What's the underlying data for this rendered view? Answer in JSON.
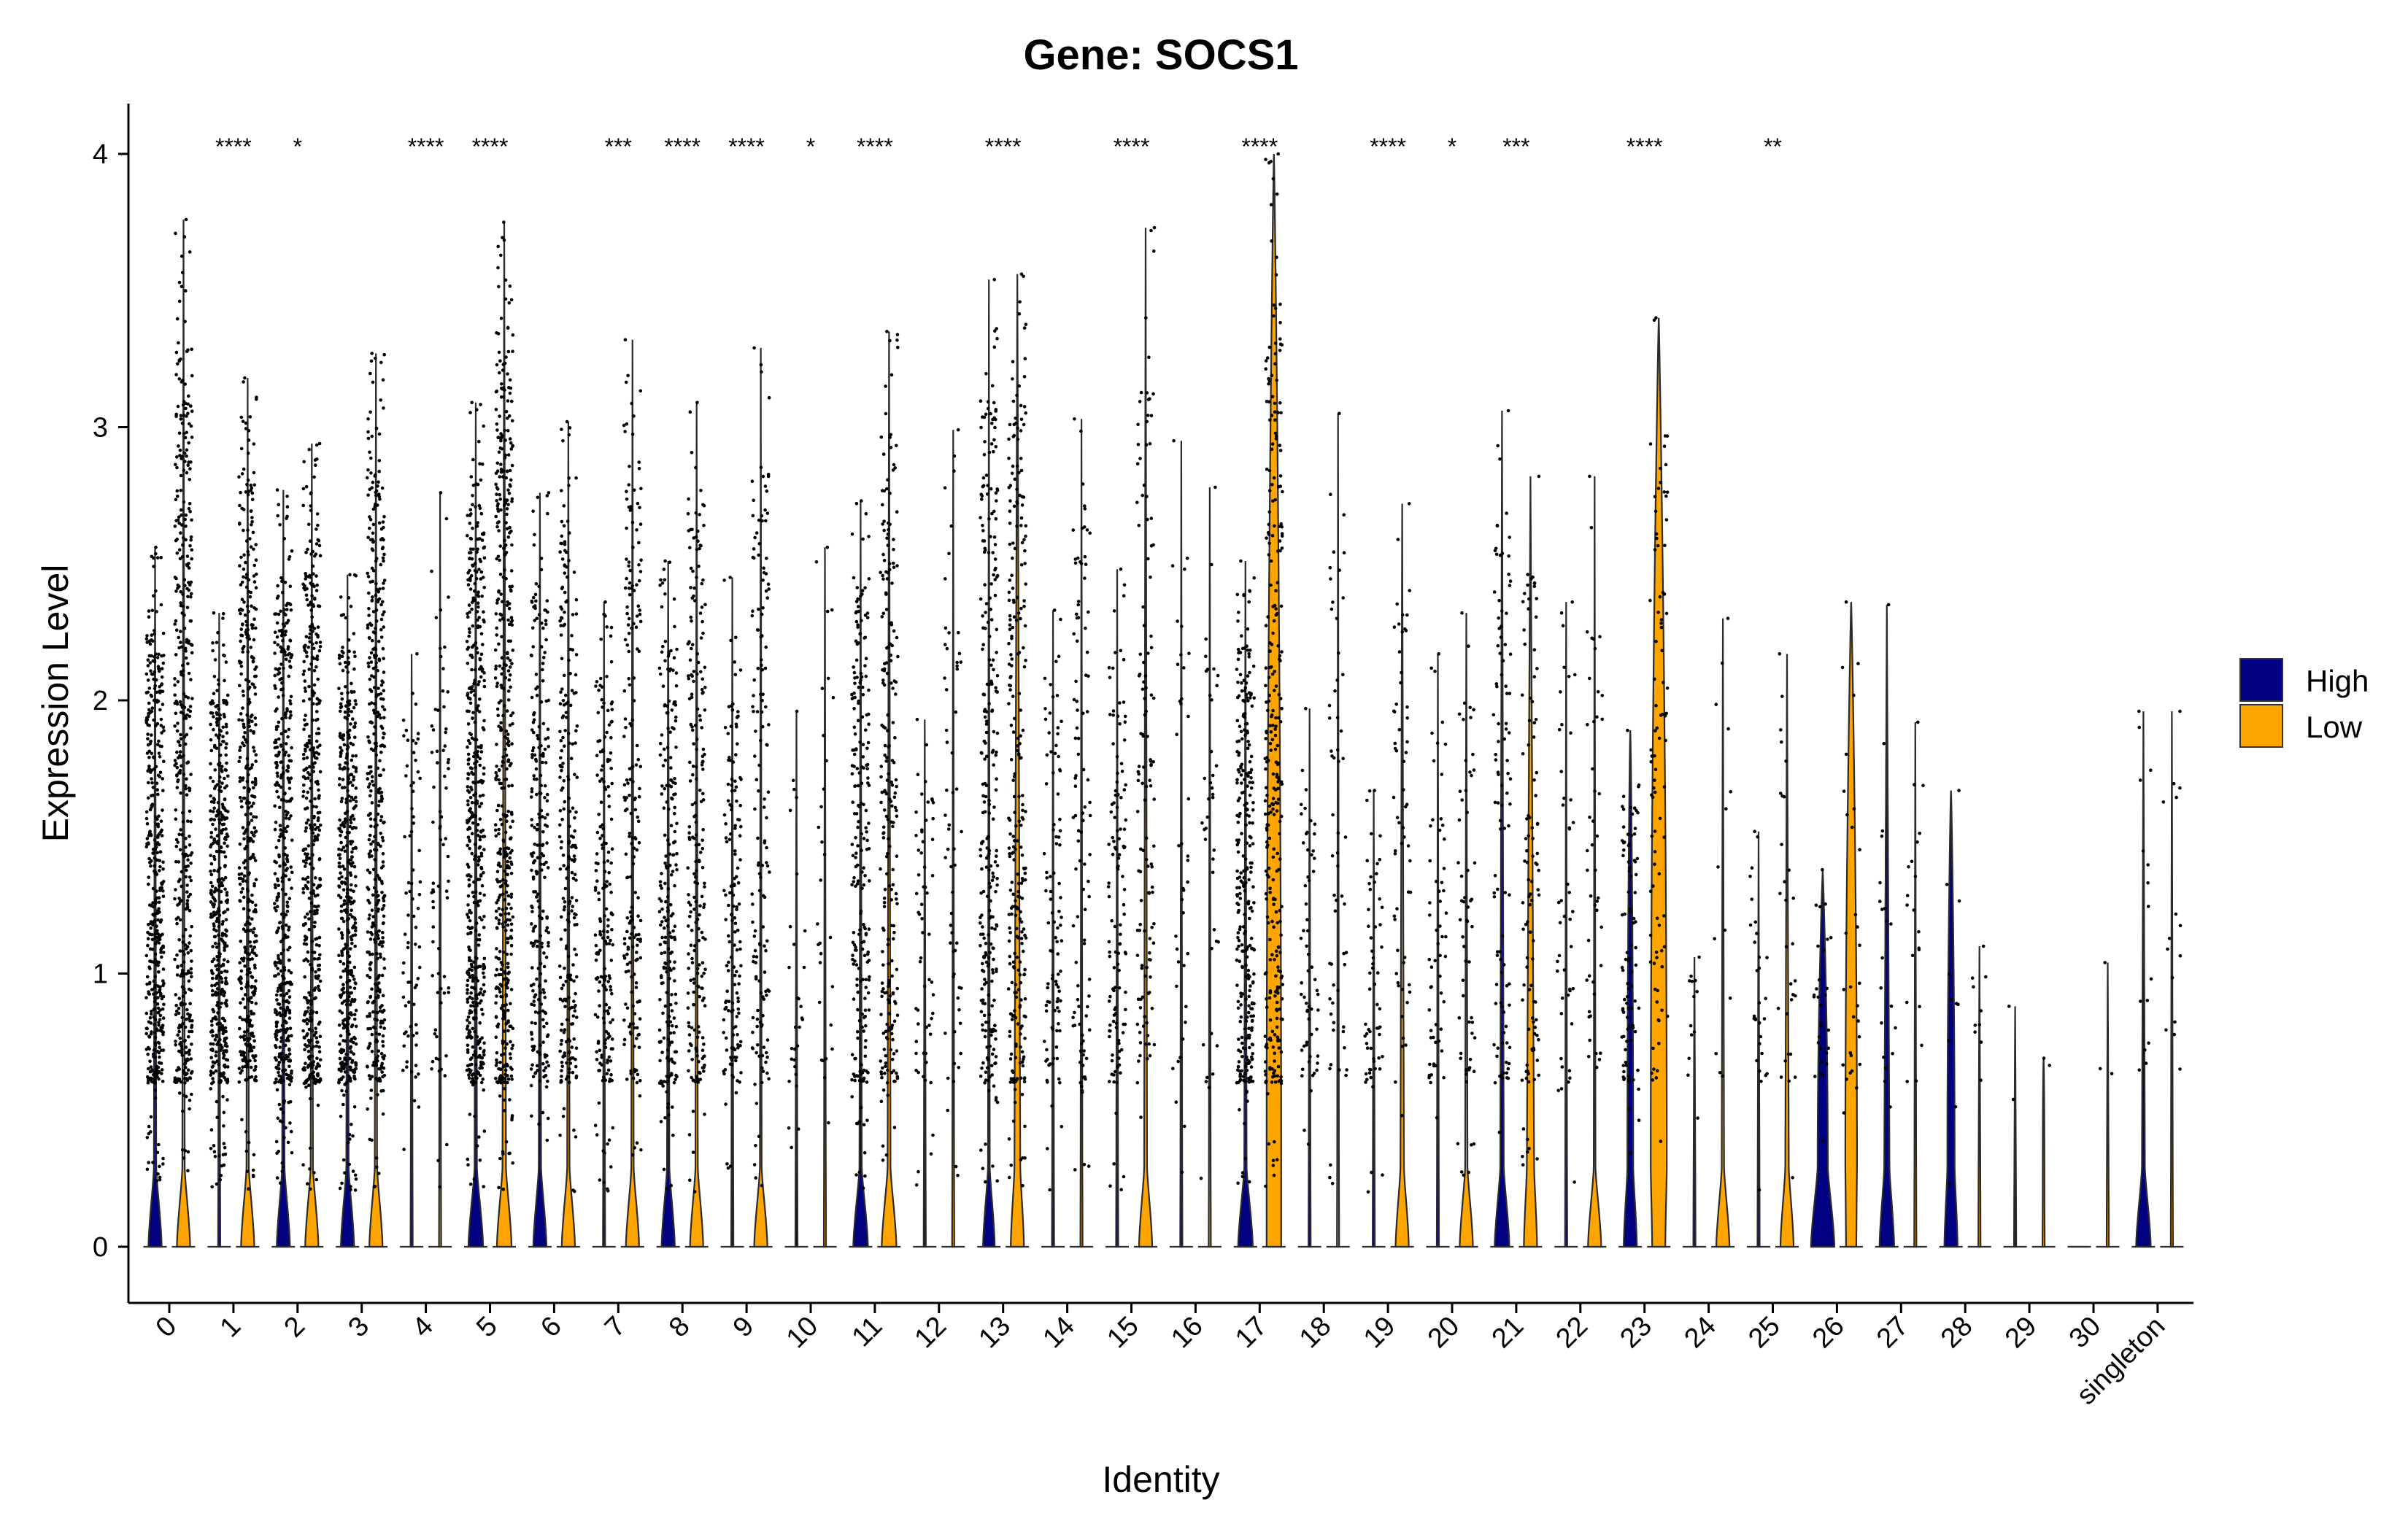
{
  "chart_data": {
    "type": "violin",
    "title": "Gene: SOCS1",
    "xlabel": "Identity",
    "ylabel": "Expression Level",
    "ylim": [
      -0.2,
      4.2
    ],
    "yticks": [
      0,
      1,
      2,
      3,
      4
    ],
    "grid": false,
    "legend_position": "right",
    "categories": [
      "0",
      "1",
      "2",
      "3",
      "4",
      "5",
      "6",
      "7",
      "8",
      "9",
      "10",
      "11",
      "12",
      "13",
      "14",
      "15",
      "16",
      "17",
      "18",
      "19",
      "20",
      "21",
      "22",
      "23",
      "24",
      "25",
      "26",
      "27",
      "28",
      "29",
      "30",
      "singleton"
    ],
    "series": [
      {
        "name": "High",
        "color": "#000080",
        "max": [
          2.56,
          2.32,
          2.77,
          2.46,
          2.17,
          3.09,
          2.76,
          2.36,
          2.51,
          2.45,
          1.96,
          2.73,
          1.93,
          3.54,
          2.33,
          2.48,
          2.95,
          2.51,
          1.97,
          1.67,
          2.17,
          3.06,
          2.36,
          1.89,
          1.06,
          1.52,
          1.38,
          2.35,
          1.67,
          0.88,
          0.0,
          1.96
        ],
        "zero_width": [
          0.45,
          0.0,
          0.45,
          0.45,
          0.0,
          0.5,
          0.45,
          0.0,
          0.45,
          0.0,
          0.0,
          0.5,
          0.0,
          0.4,
          0.0,
          0.0,
          0.0,
          0.5,
          0.0,
          0.0,
          0.0,
          0.5,
          0.0,
          0.45,
          0.0,
          0.0,
          0.8,
          0.5,
          0.45,
          0.0,
          0.0,
          0.5
        ],
        "top_width": [
          0.08,
          0.05,
          0.08,
          0.08,
          0.05,
          0.08,
          0.08,
          0.05,
          0.08,
          0.05,
          0.04,
          0.08,
          0.05,
          0.06,
          0.05,
          0.05,
          0.04,
          0.08,
          0.05,
          0.04,
          0.04,
          0.12,
          0.05,
          0.2,
          0.04,
          0.04,
          0.35,
          0.18,
          0.25,
          0.03,
          0.0,
          0.1
        ]
      },
      {
        "name": "Low",
        "color": "#FFA500",
        "max": [
          3.76,
          3.18,
          2.94,
          3.27,
          2.76,
          3.75,
          3.02,
          3.32,
          3.09,
          3.29,
          2.56,
          3.35,
          2.99,
          3.56,
          3.03,
          3.73,
          2.78,
          4.0,
          3.05,
          2.72,
          2.32,
          2.82,
          2.82,
          3.4,
          2.3,
          2.17,
          2.36,
          1.92,
          1.1,
          0.69,
          1.04,
          1.96
        ],
        "zero_width": [
          0.45,
          0.45,
          0.45,
          0.45,
          0.0,
          0.5,
          0.45,
          0.45,
          0.45,
          0.45,
          0.0,
          0.5,
          0.0,
          0.45,
          0.0,
          0.45,
          0.0,
          0.5,
          0.0,
          0.45,
          0.45,
          0.45,
          0.45,
          0.45,
          0.45,
          0.45,
          0.35,
          0.0,
          0.0,
          0.0,
          0.0,
          0.0
        ],
        "top_width": [
          0.08,
          0.08,
          0.08,
          0.08,
          0.05,
          0.12,
          0.08,
          0.08,
          0.08,
          0.06,
          0.05,
          0.1,
          0.05,
          0.2,
          0.05,
          0.1,
          0.04,
          0.5,
          0.05,
          0.12,
          0.08,
          0.25,
          0.06,
          0.55,
          0.08,
          0.12,
          0.4,
          0.03,
          0.03,
          0.03,
          0.03,
          0.05
        ]
      }
    ],
    "point_counts": [
      900,
      900,
      900,
      900,
      150,
      1000,
      500,
      400,
      450,
      300,
      60,
      450,
      120,
      550,
      200,
      250,
      80,
      600,
      120,
      120,
      120,
      200,
      90,
      180,
      25,
      60,
      60,
      40,
      20,
      4,
      5,
      30
    ],
    "significance": [
      "",
      "****",
      "*",
      "",
      "****",
      "****",
      "",
      "***",
      "****",
      "****",
      "*",
      "****",
      "",
      "****",
      "",
      "****",
      "",
      "****",
      "",
      "****",
      "*",
      "***",
      "",
      "****",
      "",
      "**",
      "",
      "",
      "",
      "",
      "",
      ""
    ],
    "point_color": "#000000"
  }
}
